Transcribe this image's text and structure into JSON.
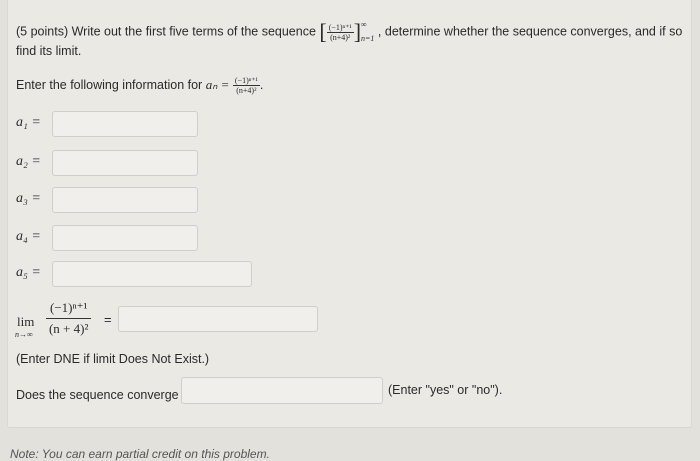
{
  "question": {
    "intro": "(5 points) Write out the first five terms of the sequence",
    "sequence_numerator": "(−1)ⁿ⁺¹",
    "sequence_denominator": "(n+4)²",
    "sequence_upper": "∞",
    "sequence_lower": "n=1",
    "continuation": ", determine whether the sequence converges, and if so",
    "line2": "find its limit.",
    "enter_info": "Enter the following information for",
    "an_label": "aₙ =",
    "an_numerator": "(−1)ⁿ⁺¹",
    "an_denominator": "(n+4)²"
  },
  "terms": [
    {
      "label": "a₁ =",
      "value": ""
    },
    {
      "label": "a₂ =",
      "value": ""
    },
    {
      "label": "a₃ =",
      "value": ""
    },
    {
      "label": "a₄ =",
      "value": ""
    },
    {
      "label": "a₅ =",
      "value": ""
    }
  ],
  "limit": {
    "lim": "lim",
    "sub": "n→∞",
    "numerator": "(−1)ⁿ⁺¹",
    "denominator": "(n + 4)²",
    "equals": "=",
    "value": "",
    "hint": "(Enter DNE if limit Does Not Exist.)"
  },
  "converge": {
    "label": "Does the sequence converge",
    "value": "",
    "hint": "(Enter \"yes\" or \"no\")."
  },
  "note": "Note: You can earn partial credit on this problem."
}
